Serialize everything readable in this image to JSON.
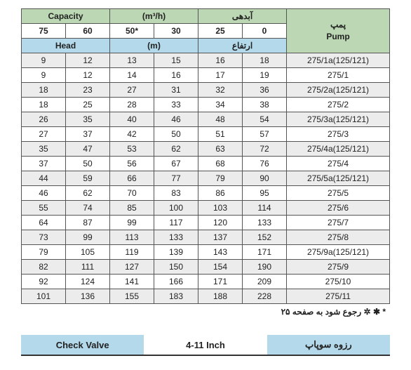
{
  "colors": {
    "capacity_bg": "#bcd7b3",
    "head_bg": "#b3d9ea",
    "pump_bg": "#c0bcd9",
    "row_alt": "#ececec",
    "row_base": "#ffffff",
    "border": "#555555",
    "text": "#222222"
  },
  "header": {
    "capacity_en": "Capacity",
    "capacity_unit": "(m³/h)",
    "capacity_fa": "آبدهی",
    "capacity_values": [
      "75",
      "60",
      "50*",
      "30",
      "25",
      "0"
    ],
    "head_en": "Head",
    "head_unit": "(m)",
    "head_fa": "ارتفاع",
    "pump_fa": "پمپ",
    "pump_en": "Pump"
  },
  "rows": [
    {
      "v": [
        "9",
        "12",
        "13",
        "15",
        "16",
        "18"
      ],
      "p": "275/1a(125/121)"
    },
    {
      "v": [
        "9",
        "12",
        "14",
        "16",
        "17",
        "19"
      ],
      "p": "275/1"
    },
    {
      "v": [
        "18",
        "23",
        "27",
        "31",
        "32",
        "36"
      ],
      "p": "275/2a(125/121)"
    },
    {
      "v": [
        "18",
        "25",
        "28",
        "33",
        "34",
        "38"
      ],
      "p": "275/2"
    },
    {
      "v": [
        "26",
        "35",
        "40",
        "46",
        "48",
        "54"
      ],
      "p": "275/3a(125/121)"
    },
    {
      "v": [
        "27",
        "37",
        "42",
        "50",
        "51",
        "57"
      ],
      "p": "275/3"
    },
    {
      "v": [
        "35",
        "47",
        "53",
        "62",
        "63",
        "72"
      ],
      "p": "275/4a(125/121)"
    },
    {
      "v": [
        "37",
        "50",
        "56",
        "67",
        "68",
        "76"
      ],
      "p": "275/4"
    },
    {
      "v": [
        "44",
        "59",
        "66",
        "77",
        "79",
        "90"
      ],
      "p": "275/5a(125/121)"
    },
    {
      "v": [
        "46",
        "62",
        "70",
        "83",
        "86",
        "95"
      ],
      "p": "275/5"
    },
    {
      "v": [
        "55",
        "74",
        "85",
        "100",
        "103",
        "114"
      ],
      "p": "275/6"
    },
    {
      "v": [
        "64",
        "87",
        "99",
        "117",
        "120",
        "133"
      ],
      "p": "275/7"
    },
    {
      "v": [
        "73",
        "99",
        "113",
        "133",
        "137",
        "152"
      ],
      "p": "275/8"
    },
    {
      "v": [
        "79",
        "105",
        "119",
        "139",
        "143",
        "171"
      ],
      "p": "275/9a(125/121)"
    },
    {
      "v": [
        "82",
        "111",
        "127",
        "150",
        "154",
        "190"
      ],
      "p": "275/9"
    },
    {
      "v": [
        "92",
        "124",
        "141",
        "166",
        "171",
        "209"
      ],
      "p": "275/10"
    },
    {
      "v": [
        "101",
        "136",
        "155",
        "183",
        "188",
        "228"
      ],
      "p": "275/11"
    }
  ],
  "footnote": "* ✱ ✲ رجوع شود به صفحه ۲۵",
  "second_table": {
    "col1": "Check Valve",
    "col2": "4-11 Inch",
    "col3": "رزوه سوپاپ"
  }
}
